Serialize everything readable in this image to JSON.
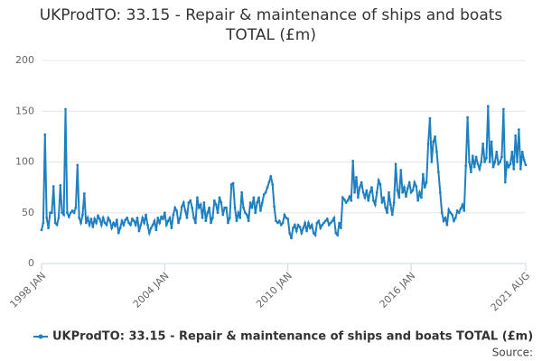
{
  "chart_data": {
    "type": "line",
    "title": "UKProdTO: 33.15 - Repair & maintenance of ships and boats TOTAL (£m)",
    "source": "Source:",
    "categories": [
      "1998 JAN",
      null,
      null,
      null,
      null,
      null,
      null,
      null,
      null,
      null,
      null,
      null,
      null,
      null,
      null,
      null,
      null,
      null,
      null,
      null,
      null,
      null,
      null,
      null,
      null,
      null,
      null,
      null,
      null,
      null,
      null,
      null,
      null,
      null,
      null,
      null,
      null,
      null,
      null,
      null,
      null,
      null,
      null,
      null,
      null,
      null,
      null,
      null,
      null,
      null,
      null,
      null,
      null,
      null,
      null,
      null,
      null,
      null,
      null,
      null,
      null,
      null,
      null,
      null,
      null,
      null,
      null,
      null,
      null,
      null,
      null,
      null,
      "2004 JAN",
      null,
      null,
      null,
      null,
      null,
      null,
      null,
      null,
      null,
      null,
      null,
      null,
      null,
      null,
      null,
      null,
      null,
      null,
      null,
      null,
      null,
      null,
      null,
      null,
      null,
      null,
      null,
      null,
      null,
      null,
      null,
      null,
      null,
      null,
      null,
      null,
      null,
      null,
      null,
      null,
      null,
      null,
      null,
      null,
      null,
      null,
      null,
      null,
      null,
      null,
      null,
      null,
      null,
      null,
      null,
      null,
      null,
      null,
      null,
      null,
      null,
      null,
      null,
      null,
      null,
      null,
      null,
      null,
      null,
      null,
      null,
      "2010 JAN",
      null,
      null,
      null,
      null,
      null,
      null,
      null,
      null,
      null,
      null,
      null,
      null,
      null,
      null,
      null,
      null,
      null,
      null,
      null,
      null,
      null,
      null,
      null,
      null,
      null,
      null,
      null,
      null,
      null,
      null,
      null,
      null,
      null,
      null,
      null,
      null,
      null,
      null,
      null,
      null,
      null,
      null,
      null,
      null,
      null,
      null,
      null,
      null,
      null,
      null,
      null,
      null,
      null,
      null,
      null,
      null,
      null,
      null,
      null,
      null,
      null,
      null,
      null,
      null,
      null,
      null,
      null,
      null,
      null,
      null,
      null,
      "2016 JAN",
      null,
      null,
      null,
      null,
      null,
      null,
      null,
      null,
      null,
      null,
      null,
      null,
      null,
      null,
      null,
      null,
      null,
      null,
      null,
      null,
      null,
      null,
      null,
      null,
      null,
      null,
      null,
      null,
      null,
      null,
      null,
      null,
      null,
      null,
      null,
      null,
      null,
      null,
      null,
      null,
      null,
      null,
      null,
      null,
      null,
      null,
      null,
      null,
      null,
      null,
      null,
      null,
      null,
      null,
      null,
      null,
      null,
      null,
      null,
      null,
      null,
      null,
      null,
      null,
      null,
      null,
      "2021 AUG"
    ],
    "series": [
      {
        "name": "UKProdTO: 33.15 - Repair & maintenance of ships and boats TOTAL (£m)",
        "color": "#1f80c0",
        "values": [
          33,
          40,
          127,
          45,
          35,
          50,
          50,
          76,
          40,
          38,
          45,
          77,
          50,
          48,
          152,
          50,
          46,
          50,
          52,
          50,
          55,
          97,
          45,
          40,
          48,
          69,
          40,
          45,
          38,
          44,
          36,
          44,
          40,
          47,
          44,
          38,
          45,
          40,
          38,
          45,
          42,
          35,
          40,
          37,
          43,
          30,
          35,
          42,
          38,
          43,
          45,
          40,
          38,
          44,
          42,
          38,
          45,
          32,
          38,
          45,
          40,
          48,
          38,
          30,
          35,
          38,
          42,
          33,
          45,
          40,
          46,
          44,
          50,
          38,
          42,
          45,
          35,
          48,
          55,
          52,
          40,
          45,
          56,
          60,
          52,
          45,
          60,
          62,
          55,
          45,
          40,
          65,
          55,
          58,
          45,
          60,
          42,
          50,
          55,
          40,
          45,
          62,
          58,
          50,
          65,
          60,
          48,
          55,
          55,
          40,
          45,
          78,
          79,
          55,
          42,
          50,
          45,
          70,
          55,
          50,
          48,
          42,
          60,
          55,
          65,
          50,
          60,
          65,
          52,
          60,
          68,
          70,
          75,
          80,
          86,
          78,
          56,
          42,
          40,
          42,
          38,
          40,
          48,
          45,
          44,
          30,
          25,
          35,
          38,
          32,
          38,
          36,
          30,
          35,
          40,
          32,
          40,
          35,
          38,
          30,
          28,
          40,
          42,
          35,
          38,
          40,
          42,
          44,
          38,
          40,
          42,
          45,
          30,
          28,
          40,
          35,
          65,
          63,
          60,
          62,
          66,
          62,
          101,
          70,
          85,
          65,
          75,
          80,
          70,
          65,
          72,
          62,
          70,
          75,
          62,
          58,
          70,
          82,
          78,
          60,
          65,
          55,
          50,
          70,
          58,
          48,
          60,
          98,
          72,
          65,
          92,
          70,
          75,
          66,
          74,
          80,
          70,
          72,
          80,
          76,
          62,
          70,
          65,
          88,
          75,
          80,
          118,
          143,
          100,
          120,
          125,
          110,
          90,
          70,
          50,
          42,
          45,
          38,
          53,
          50,
          48,
          42,
          45,
          52,
          50,
          54,
          58,
          52,
          96,
          144,
          100,
          90,
          106,
          95,
          105,
          98,
          93,
          100,
          118,
          100,
          104,
          155,
          100,
          120,
          95,
          100,
          110,
          98,
          100,
          105,
          152,
          80,
          100,
          95,
          98,
          110,
          93,
          126,
          100,
          132,
          93,
          110,
          102,
          97
        ]
      }
    ],
    "ylim": [
      0,
      200
    ],
    "yticks": [
      0,
      50,
      100,
      150,
      200
    ],
    "grid": true,
    "legend": "bottom"
  }
}
